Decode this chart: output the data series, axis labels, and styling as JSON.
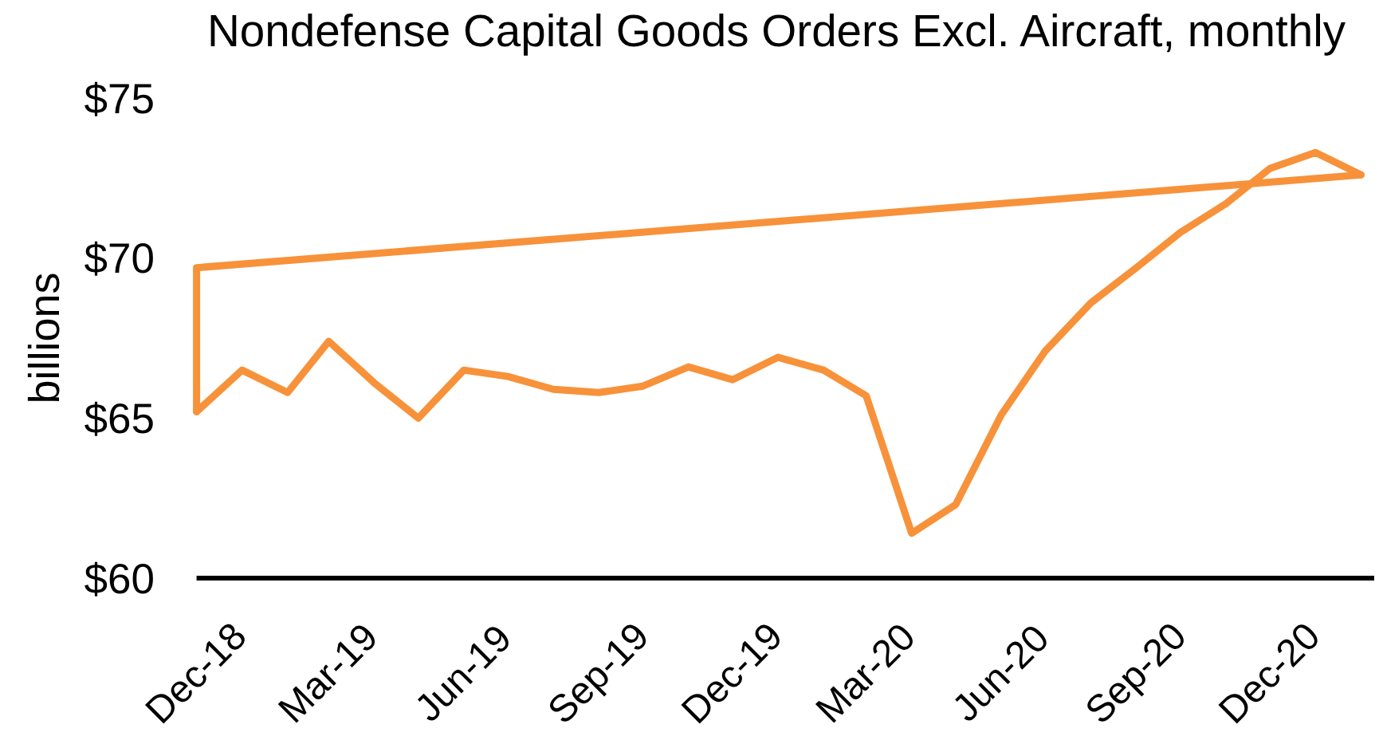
{
  "chart_data": {
    "type": "line",
    "title": "Nondefense Capital Goods Orders Excl. Aircraft, monthly",
    "ylabel": "billions",
    "series": [
      {
        "color": "#f7923a",
        "x": [
          "2018-12",
          "2019-01",
          "2019-02",
          "2019-03",
          "2019-04",
          "2019-05",
          "2019-06",
          "2019-07",
          "2019-08",
          "2019-09",
          "2019-10",
          "2019-11",
          "2019-12",
          "2020-01",
          "2020-02",
          "2020-03",
          "2020-04",
          "2020-05",
          "2020-06",
          "2020-07",
          "2020-08",
          "2020-09",
          "2020-10",
          "2020-11",
          "2020-12",
          "2021-01",
          "2021-02"
        ],
        "values": [
          65.2,
          66.5,
          65.8,
          67.4,
          66.1,
          65.0,
          66.5,
          66.3,
          65.9,
          65.8,
          66.0,
          66.6,
          66.2,
          66.9,
          66.5,
          65.7,
          61.4,
          62.3,
          65.1,
          67.1,
          68.6,
          69.7,
          70.8,
          71.7,
          72.8,
          73.3,
          72.6
        ]
      },
      {
        "color": "#f7923a",
        "x": [
          "2018-12",
          "2018-12",
          "2021-02"
        ],
        "values": [
          65.2,
          69.7,
          72.6
        ]
      }
    ],
    "xlim": [
      "2018-12",
      "2021-02-10"
    ],
    "xticks": [
      {
        "value": "2018-12",
        "label": "Dec-18"
      },
      {
        "value": "2019-03",
        "label": "Mar-19"
      },
      {
        "value": "2019-06",
        "label": "Jun-19"
      },
      {
        "value": "2019-09",
        "label": "Sep-19"
      },
      {
        "value": "2019-12",
        "label": "Dec-19"
      },
      {
        "value": "2020-03",
        "label": "Mar-20"
      },
      {
        "value": "2020-06",
        "label": "Jun-20"
      },
      {
        "value": "2020-09",
        "label": "Sep-20"
      },
      {
        "value": "2020-12",
        "label": "Dec-20"
      }
    ],
    "ylim": [
      60,
      75
    ],
    "yticks": [
      {
        "value": 60,
        "label": "$60"
      },
      {
        "value": 65,
        "label": "$65"
      },
      {
        "value": 70,
        "label": "$70"
      },
      {
        "value": 75,
        "label": "$75"
      }
    ],
    "grid": false,
    "legend": false,
    "marker": "none",
    "line_style": "solid"
  }
}
